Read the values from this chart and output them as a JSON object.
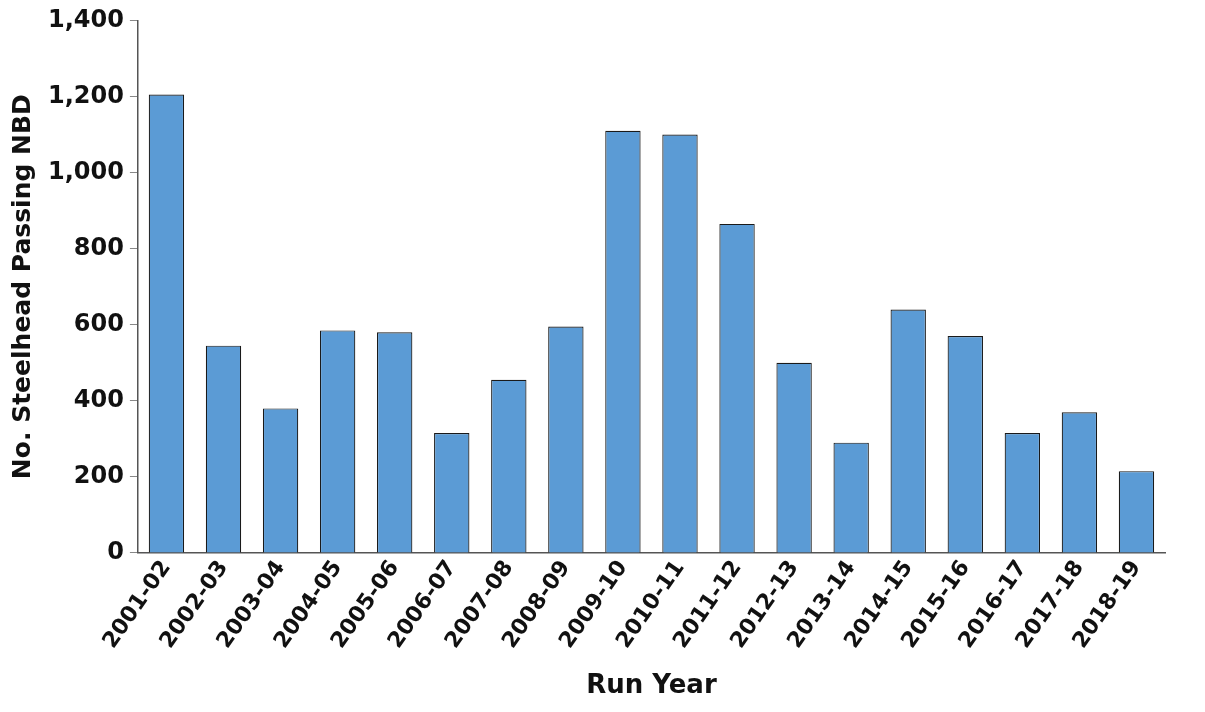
{
  "chart_data": {
    "type": "bar",
    "xlabel": "Run Year",
    "ylabel": "No. Steelhead Passing NBD",
    "categories": [
      "2001-02",
      "2002-03",
      "2003-04",
      "2004-05",
      "2005-06",
      "2006-07",
      "2007-08",
      "2008-09",
      "2009-10",
      "2010-11",
      "2011-12",
      "2012-13",
      "2013-14",
      "2014-15",
      "2015-16",
      "2016-17",
      "2017-18",
      "2018-19"
    ],
    "values": [
      1205,
      545,
      380,
      585,
      580,
      315,
      455,
      595,
      1110,
      1100,
      865,
      500,
      290,
      640,
      570,
      315,
      370,
      215
    ],
    "color": "#5b9bd5",
    "ylim": [
      0,
      1400
    ],
    "yticks": [
      0,
      200,
      400,
      600,
      800,
      {
        "value": 1000,
        "label": "1,000"
      },
      {
        "value": 1200,
        "label": "1,200"
      },
      {
        "value": 1400,
        "label": "1,400"
      }
    ],
    "grid": false,
    "legend": false
  }
}
